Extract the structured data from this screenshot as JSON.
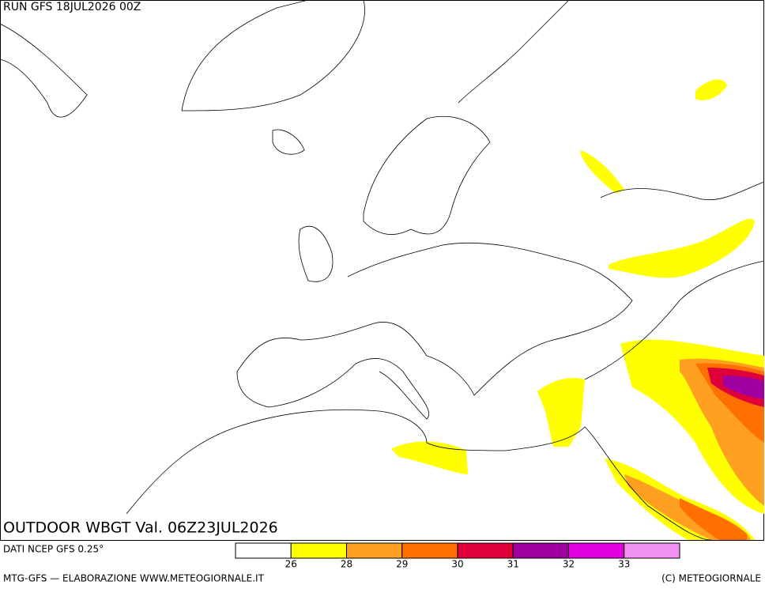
{
  "header": {
    "run": "RUN GFS 18JUL2026 00Z"
  },
  "map": {
    "title": "OUTDOOR WBGT Val. 06Z23JUL2026"
  },
  "legend": {
    "source": "DATI NCEP GFS 0.25°",
    "colors": [
      "#ffffff",
      "#ffff00",
      "#ffa020",
      "#ff7000",
      "#e0003a",
      "#a000a0",
      "#e000e0",
      "#f090f0"
    ],
    "thresholds": [
      26,
      28,
      29,
      30,
      31,
      32,
      33
    ]
  },
  "footer": {
    "left": "MTG-GFS — ELABORAZIONE WWW.METEOGIORNALE.IT",
    "right": "(C) METEOGIORNALE"
  }
}
